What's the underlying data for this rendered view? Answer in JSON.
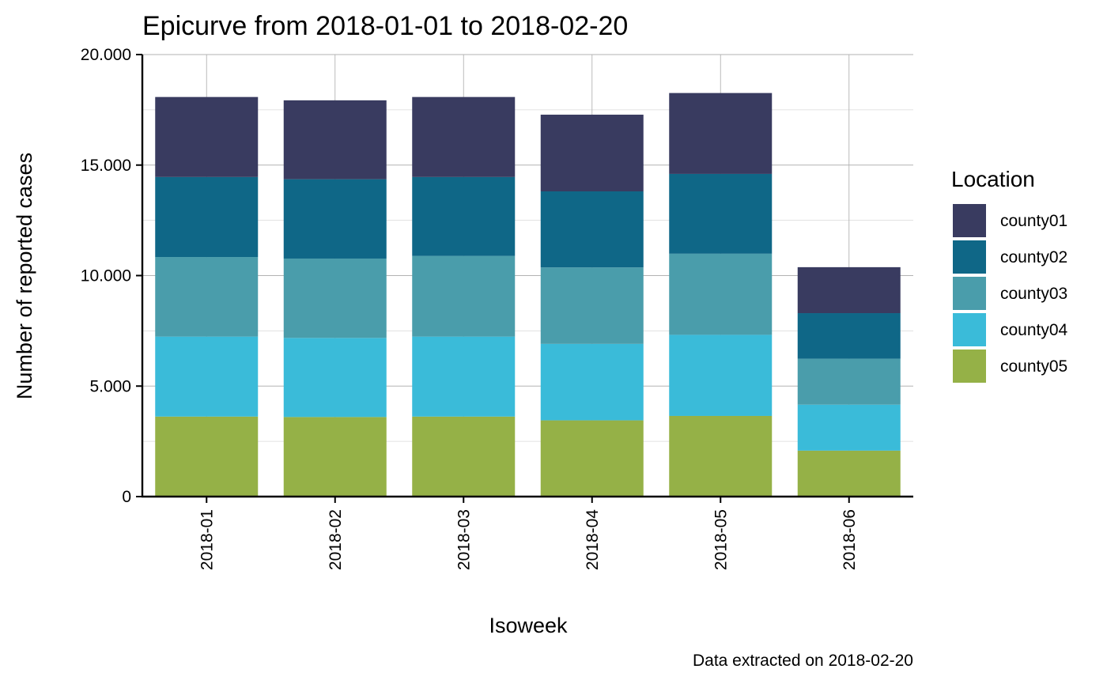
{
  "chart_data": {
    "type": "bar",
    "stacked": true,
    "title": "Epicurve from 2018-01-01 to 2018-02-20",
    "xlabel": "Isoweek",
    "ylabel": "Number of reported cases",
    "caption": "Data extracted on 2018-02-20",
    "categories": [
      "2018-01",
      "2018-02",
      "2018-03",
      "2018-04",
      "2018-05",
      "2018-06"
    ],
    "ylim": [
      0,
      20000
    ],
    "yticks": [
      0,
      5000,
      10000,
      15000,
      20000
    ],
    "ytick_labels": [
      "0",
      "5.000",
      "10.000",
      "15.000",
      "20.000"
    ],
    "grid": true,
    "legend": {
      "title": "Location",
      "position": "right"
    },
    "series": [
      {
        "name": "county05",
        "color": "#95B147",
        "values": [
          3620,
          3600,
          3620,
          3450,
          3650,
          2080
        ]
      },
      {
        "name": "county04",
        "color": "#3ABBD9",
        "values": [
          3620,
          3580,
          3620,
          3460,
          3670,
          2080
        ]
      },
      {
        "name": "county03",
        "color": "#4A9DAB",
        "values": [
          3600,
          3590,
          3650,
          3460,
          3670,
          2080
        ]
      },
      {
        "name": "county02",
        "color": "#0F6787",
        "values": [
          3620,
          3590,
          3570,
          3440,
          3610,
          2060
        ]
      },
      {
        "name": "county01",
        "color": "#393B60",
        "values": [
          3620,
          3570,
          3620,
          3470,
          3660,
          2080
        ]
      }
    ]
  }
}
